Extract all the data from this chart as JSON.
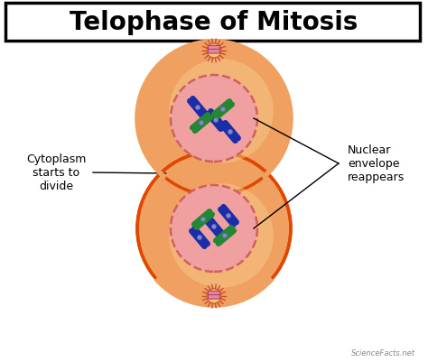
{
  "title": "Telophase of Mitosis",
  "title_fontsize": 20,
  "label_cytoplasm": "Cytoplasm\nstarts to\ndivide",
  "label_nuclear": "Nuclear\nenvelope\nreappears",
  "bg_color": "#ffffff",
  "cell_outer_color": "#f0a060",
  "cell_outer_edge": "#e04800",
  "cell_inner_light": "#f8d090",
  "nucleus_fill": "#f0a0a0",
  "nucleus_edge": "#d06060",
  "centrosome_body": "#e888a0",
  "centrosome_ray": "#c85030",
  "chr_blue": "#1a2eaa",
  "chr_green": "#228833",
  "chr_kinetochore": "#8888cc",
  "watermark": "ScienceFacts.net"
}
